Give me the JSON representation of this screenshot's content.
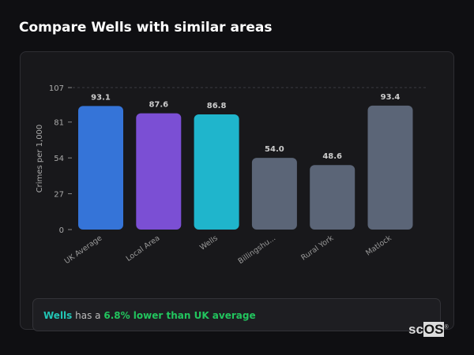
{
  "title": "Compare Wells with similar areas",
  "chart_data": {
    "type": "bar",
    "categories": [
      "UK Average",
      "Local Area",
      "Wells",
      "Billingshu...",
      "Rural York",
      "Matlock"
    ],
    "values": [
      93.1,
      87.6,
      86.8,
      54.0,
      48.6,
      93.4
    ],
    "value_labels": [
      "93.1",
      "87.6",
      "86.8",
      "54.0",
      "48.6",
      "93.4"
    ],
    "colors": [
      "#3574d8",
      "#7b4fd4",
      "#1fb5cc",
      "#5b6577",
      "#5b6577",
      "#5b6577"
    ],
    "ylabel": "Crimes per 1,000",
    "xlabel": "",
    "ylim": [
      0,
      107
    ],
    "yticks": [
      "0",
      "27",
      "54",
      "81",
      "107"
    ],
    "grid": "top dashed line only",
    "legend": "none"
  },
  "insight": {
    "area": "Wells",
    "middle": " has a ",
    "difference": "6.8% lower than UK average"
  },
  "logo": {
    "text_a": "sc",
    "text_b": "OS",
    "mark": "®"
  }
}
